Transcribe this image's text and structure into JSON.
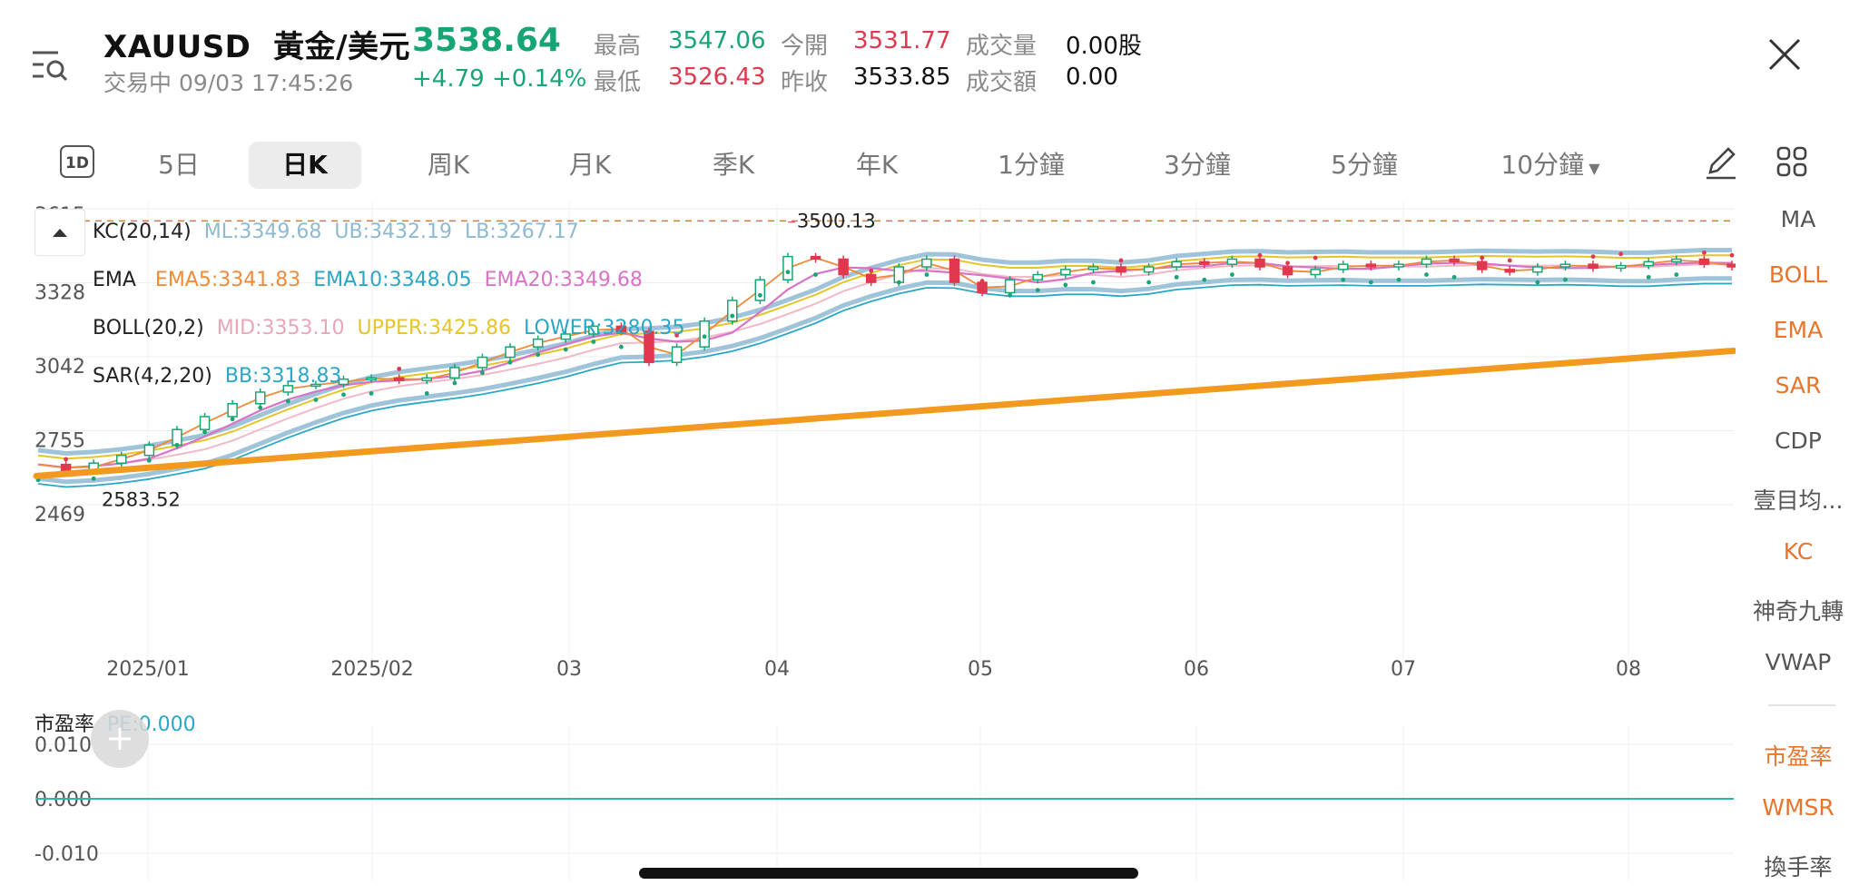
{
  "header": {
    "symbol": "XAUUSD",
    "name": "黃金/美元",
    "price": "3538.64",
    "status": "交易中 09/03 17:45:26",
    "change": "+4.79 +0.14%",
    "stats": [
      {
        "label": "最高",
        "value": "3547.06",
        "color": "green"
      },
      {
        "label": "今開",
        "value": "3531.77",
        "color": "red"
      },
      {
        "label": "成交量",
        "value": "0.00股",
        "color": "dark"
      },
      {
        "label": "最低",
        "value": "3526.43",
        "color": "red"
      },
      {
        "label": "昨收",
        "value": "3533.85",
        "color": "dark"
      },
      {
        "label": "成交額",
        "value": "0.00",
        "color": "dark"
      }
    ]
  },
  "tabs": {
    "period_icon": "1D",
    "items": [
      "5日",
      "日K",
      "周K",
      "月K",
      "季K",
      "年K",
      "1分鐘",
      "3分鐘",
      "5分鐘",
      "10分鐘"
    ],
    "active": "日K"
  },
  "indicators": {
    "top": [
      "MA",
      "BOLL",
      "EMA",
      "SAR",
      "CDP",
      "壹目均...",
      "KC",
      "神奇九轉",
      "VWAP"
    ],
    "bottom": [
      "市盈率",
      "WMSR",
      "換手率"
    ]
  },
  "legends": {
    "kc": {
      "name": "KC(20,14)",
      "ml": "ML:3349.68",
      "ub": "UB:3432.19",
      "lb": "LB:3267.17"
    },
    "ema": {
      "name": "EMA",
      "ema5": "EMA5:3341.83",
      "ema10": "EMA10:3348.05",
      "ema20": "EMA20:3349.68"
    },
    "boll": {
      "name": "BOLL(20,2)",
      "mid": "MID:3353.10",
      "upper": "UPPER:3425.86",
      "lower": "LOWER:3280.35"
    },
    "sar": {
      "name": "SAR(4,2,20)",
      "bb": "BB:3318.83"
    },
    "pe": {
      "name": "市盈率",
      "value": "PE:0.000"
    }
  },
  "chart_data": [
    {
      "type": "candlestick",
      "y_ticks": [
        "3615",
        "3328",
        "3042",
        "2755",
        "2469"
      ],
      "ylim": [
        2469,
        3615
      ],
      "x_ticks": [
        "2025/01",
        "2025/02",
        "03",
        "04",
        "05",
        "06",
        "07",
        "08"
      ],
      "annotations": {
        "high": "3500.13",
        "low": "2583.52"
      },
      "reference_line": 3568,
      "trendline": {
        "start": 2580,
        "end": 3065
      },
      "close_path": [
        2625,
        2600,
        2630,
        2660,
        2700,
        2760,
        2810,
        2860,
        2905,
        2930,
        2935,
        2955,
        2960,
        2950,
        2960,
        3000,
        3040,
        3080,
        3110,
        3130,
        3160,
        3140,
        3020,
        3080,
        3180,
        3260,
        3340,
        3430,
        3420,
        3360,
        3330,
        3390,
        3420,
        3330,
        3290,
        3340,
        3360,
        3380,
        3390,
        3370,
        3390,
        3410,
        3400,
        3420,
        3390,
        3360,
        3380,
        3400,
        3390,
        3400,
        3420,
        3410,
        3380,
        3370,
        3390,
        3400,
        3385,
        3395,
        3410,
        3420,
        3400,
        3390
      ]
    },
    {
      "type": "line",
      "name": "市盈率",
      "y_ticks": [
        "0.010",
        "0.000",
        "-0.010"
      ],
      "ylim": [
        -0.01,
        0.01
      ],
      "values": [
        0,
        0
      ]
    }
  ],
  "colors": {
    "up": "#17a673",
    "down": "#e0384e",
    "trendline": "#f29a1f",
    "kc_band": "#9fc3d8",
    "boll_upper": "#e6c42b",
    "boll_lower": "#2aa6c7",
    "ema5": "#ee8b3a",
    "ema20": "#d873c7",
    "sar": "#17a673",
    "pe_line": "#2bb5b5"
  }
}
